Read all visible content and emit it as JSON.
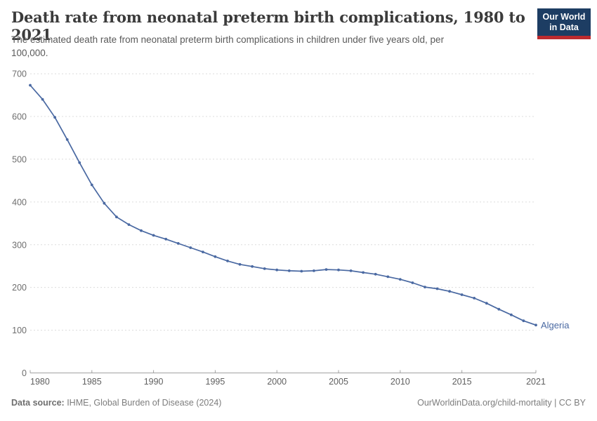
{
  "header": {
    "title": "Death rate from neonatal preterm birth complications, 1980 to 2021",
    "subtitle_lines": [
      "The estimated death rate from neonatal preterm birth complications in children under five years old, per",
      "100,000."
    ],
    "logo": {
      "line1": "Our World",
      "line2": "in Data",
      "bg_color": "#1d3d63",
      "bar_color": "#bc2b2f"
    }
  },
  "chart_data": {
    "type": "line",
    "title": "Death rate from neonatal preterm birth complications, 1980 to 2021",
    "xlabel": "",
    "ylabel": "",
    "xlim": [
      1980,
      2021
    ],
    "ylim": [
      0,
      700
    ],
    "y_ticks": [
      0,
      100,
      200,
      300,
      400,
      500,
      600,
      700
    ],
    "x_ticks": [
      1980,
      1985,
      1990,
      1995,
      2000,
      2005,
      2010,
      2015,
      2021
    ],
    "grid": "horizontal-dashed",
    "legend_position": "end-of-line-label",
    "x": [
      1980,
      1981,
      1982,
      1983,
      1984,
      1985,
      1986,
      1987,
      1988,
      1989,
      1990,
      1991,
      1992,
      1993,
      1994,
      1995,
      1996,
      1997,
      1998,
      1999,
      2000,
      2001,
      2002,
      2003,
      2004,
      2005,
      2006,
      2007,
      2008,
      2009,
      2010,
      2011,
      2012,
      2013,
      2014,
      2015,
      2016,
      2017,
      2018,
      2019,
      2020,
      2021
    ],
    "series": [
      {
        "name": "Algeria",
        "color": "#4a69a2",
        "values": [
          673,
          640,
          598,
          546,
          492,
          440,
          397,
          365,
          347,
          333,
          322,
          313,
          303,
          293,
          283,
          272,
          262,
          254,
          249,
          244,
          241,
          239,
          238,
          239,
          242,
          241,
          239,
          235,
          231,
          225,
          219,
          211,
          201,
          197,
          191,
          183,
          175,
          163,
          149,
          136,
          122,
          112
        ]
      }
    ],
    "axis_colors": {
      "grid": "#dcdcdc",
      "axis_line": "#a1a1a1",
      "y_label": "#6e6e6e",
      "x_label": "#5f5f5f"
    }
  },
  "footer": {
    "source_label": "Data source:",
    "source_text": " IHME, Global Burden of Disease (2024)",
    "credit": "OurWorldinData.org/child-mortality | CC BY"
  }
}
